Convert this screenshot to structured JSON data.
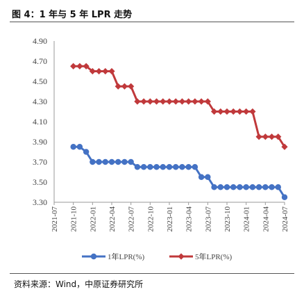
{
  "figure": {
    "title": "图 4：1 年与 5 年 LPR 走势",
    "source": "资料来源：Wind，中原证券研究所"
  },
  "chart_data": {
    "type": "line",
    "x_ticks": [
      "2021-07",
      "2021-10",
      "2022-01",
      "2022-04",
      "2022-07",
      "2022-10",
      "2023-01",
      "2023-04",
      "2023-07",
      "2023-10",
      "2024-01",
      "2024-04",
      "2024-07"
    ],
    "y_ticks": [
      "4.90",
      "4.70",
      "4.50",
      "4.30",
      "4.10",
      "3.90",
      "3.70",
      "3.50",
      "3.30"
    ],
    "ylim": [
      3.3,
      4.9
    ],
    "xlim": [
      "2021-07",
      "2024-07"
    ],
    "grid": false,
    "legend_position": "bottom",
    "series": [
      {
        "name": "1年LPR(%)",
        "color": "#4472c4",
        "marker": "circle",
        "x": [
          "2021-10",
          "2021-11",
          "2021-12",
          "2022-01",
          "2022-02",
          "2022-03",
          "2022-04",
          "2022-05",
          "2022-06",
          "2022-07",
          "2022-08",
          "2022-09",
          "2022-10",
          "2022-11",
          "2022-12",
          "2023-01",
          "2023-02",
          "2023-03",
          "2023-04",
          "2023-05",
          "2023-06",
          "2023-07",
          "2023-08",
          "2023-09",
          "2023-10",
          "2023-11",
          "2023-12",
          "2024-01",
          "2024-02",
          "2024-03",
          "2024-04",
          "2024-05",
          "2024-06",
          "2024-07"
        ],
        "values": [
          3.85,
          3.85,
          3.8,
          3.7,
          3.7,
          3.7,
          3.7,
          3.7,
          3.7,
          3.7,
          3.65,
          3.65,
          3.65,
          3.65,
          3.65,
          3.65,
          3.65,
          3.65,
          3.65,
          3.65,
          3.55,
          3.55,
          3.45,
          3.45,
          3.45,
          3.45,
          3.45,
          3.45,
          3.45,
          3.45,
          3.45,
          3.45,
          3.45,
          3.35
        ]
      },
      {
        "name": "5年LPR(%)",
        "color": "#c0393b",
        "marker": "diamond",
        "x": [
          "2021-10",
          "2021-11",
          "2021-12",
          "2022-01",
          "2022-02",
          "2022-03",
          "2022-04",
          "2022-05",
          "2022-06",
          "2022-07",
          "2022-08",
          "2022-09",
          "2022-10",
          "2022-11",
          "2022-12",
          "2023-01",
          "2023-02",
          "2023-03",
          "2023-04",
          "2023-05",
          "2023-06",
          "2023-07",
          "2023-08",
          "2023-09",
          "2023-10",
          "2023-11",
          "2023-12",
          "2024-01",
          "2024-02",
          "2024-03",
          "2024-04",
          "2024-05",
          "2024-06",
          "2024-07"
        ],
        "values": [
          4.65,
          4.65,
          4.65,
          4.6,
          4.6,
          4.6,
          4.6,
          4.45,
          4.45,
          4.45,
          4.3,
          4.3,
          4.3,
          4.3,
          4.3,
          4.3,
          4.3,
          4.3,
          4.3,
          4.3,
          4.3,
          4.3,
          4.2,
          4.2,
          4.2,
          4.2,
          4.2,
          4.2,
          4.2,
          3.95,
          3.95,
          3.95,
          3.95,
          3.85
        ]
      }
    ]
  }
}
